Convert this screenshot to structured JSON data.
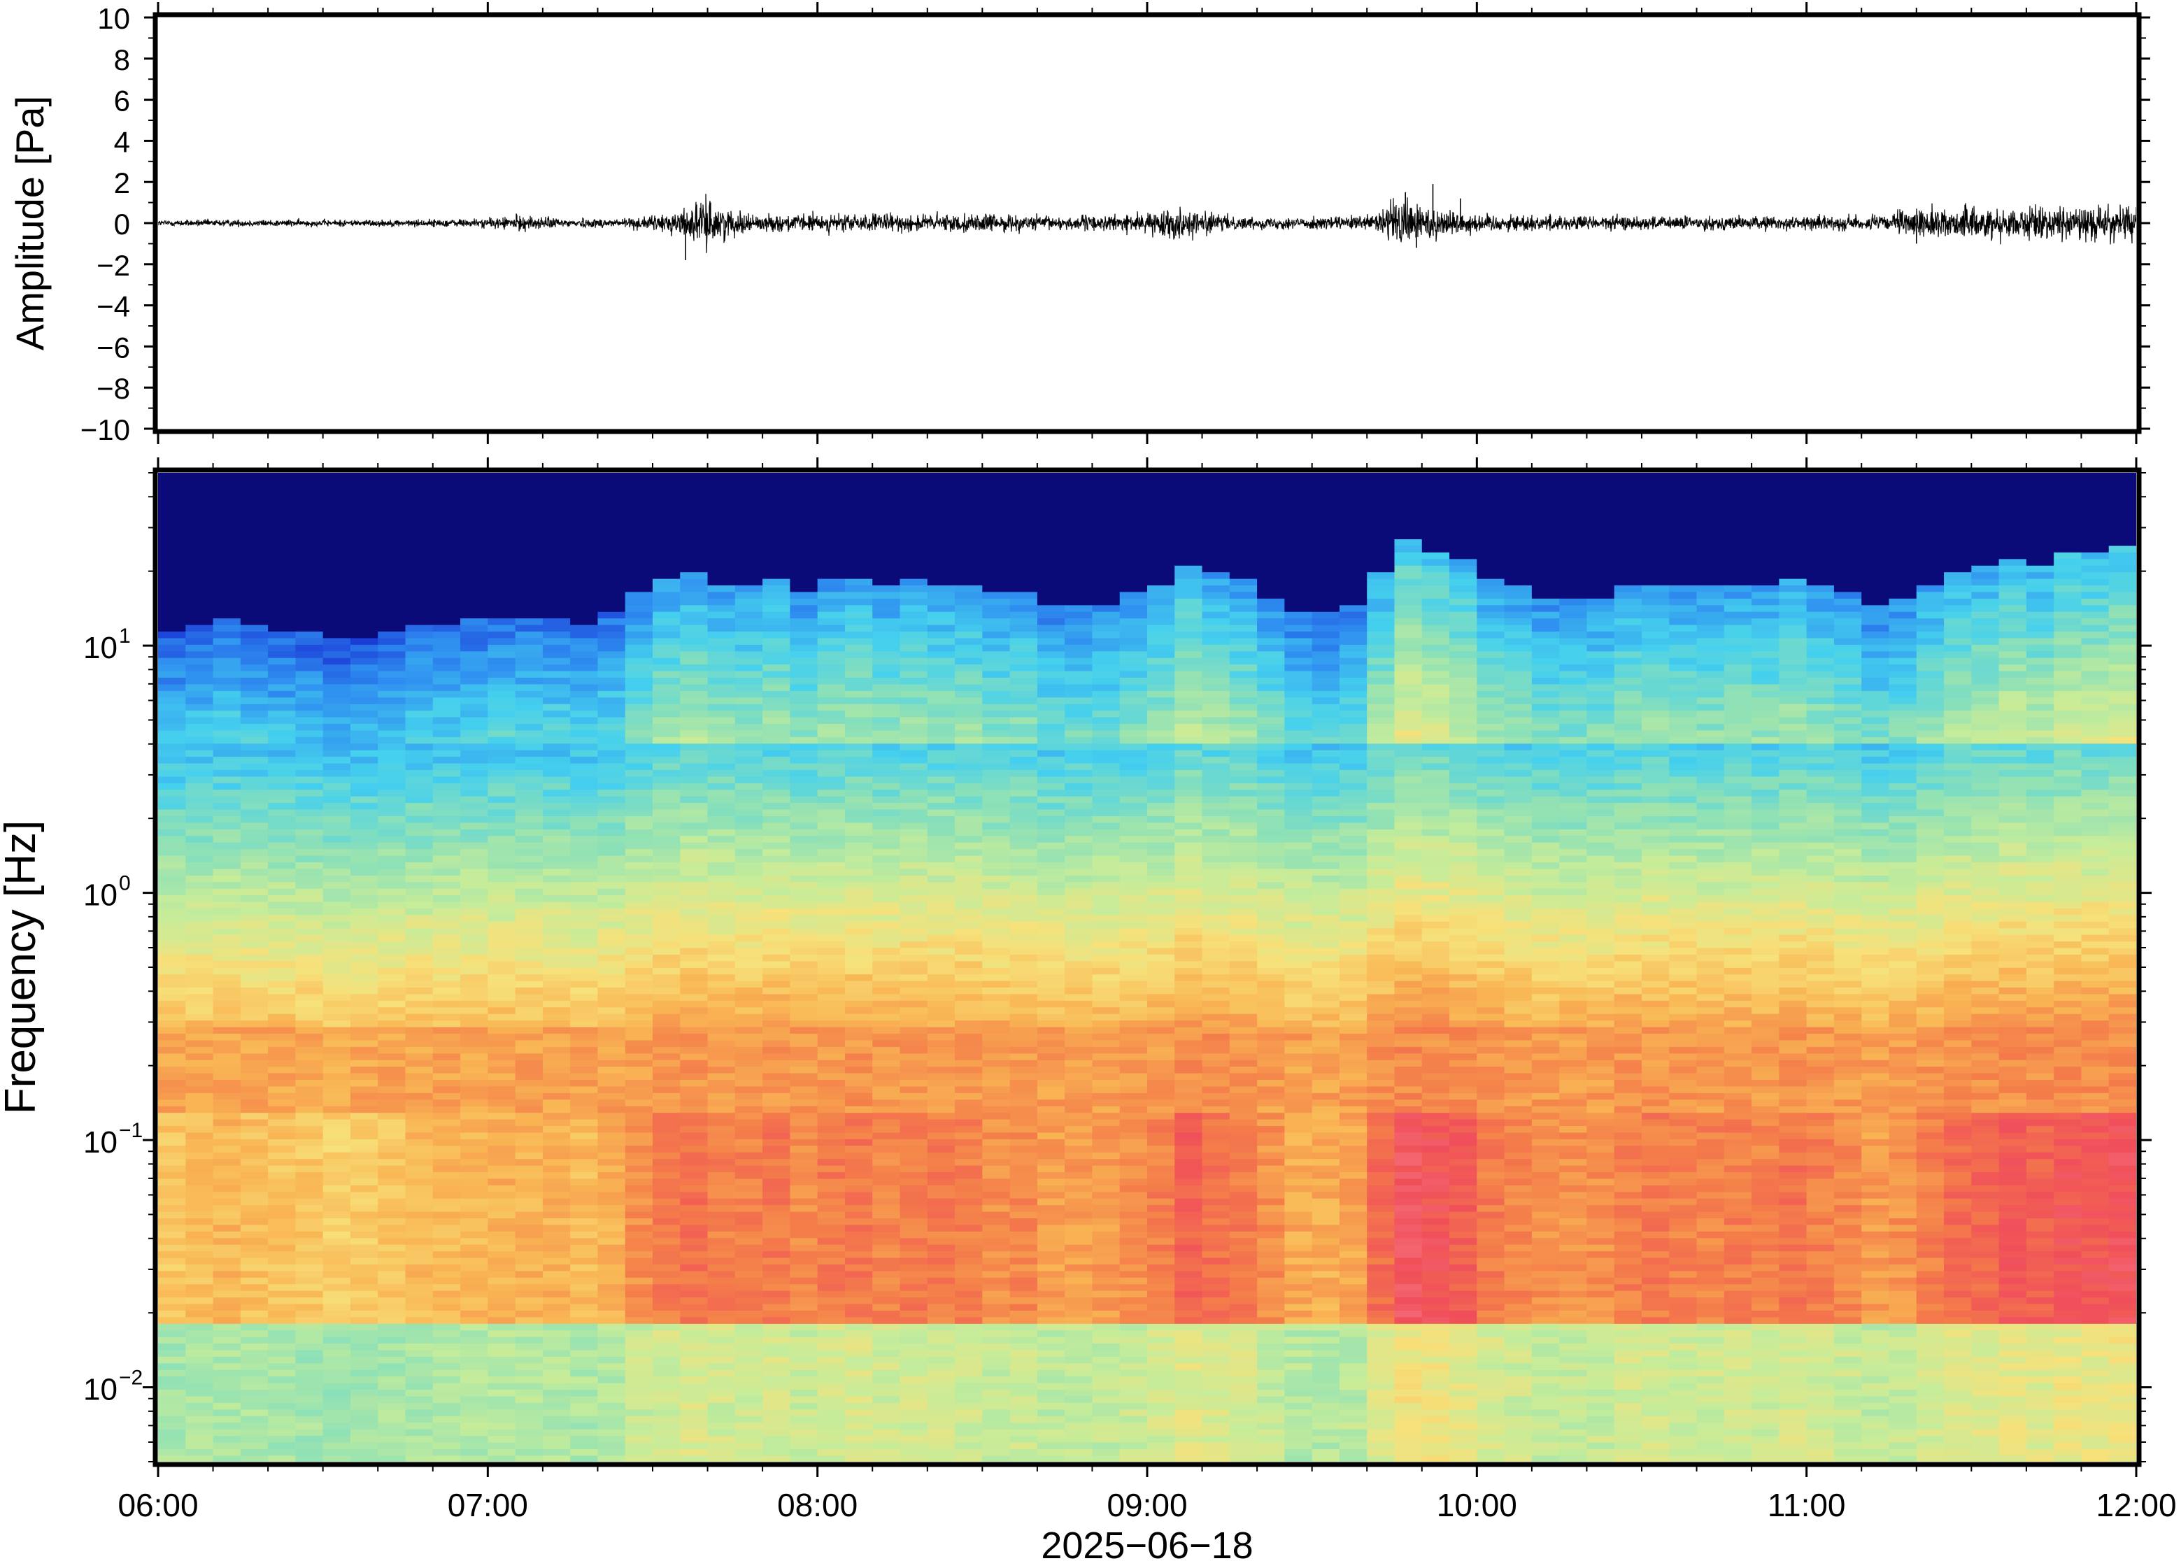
{
  "chart_data": [
    {
      "type": "line",
      "name": "waveform-panel",
      "ylabel": "Amplitude [Pa]",
      "ylim": [
        -10,
        10
      ],
      "yticks": [
        -10,
        -8,
        -6,
        -4,
        -2,
        0,
        2,
        4,
        6,
        8,
        10
      ],
      "ytick_labels": [
        "−10",
        "−8",
        "−6",
        "−4",
        "−2",
        "0",
        "2",
        "4",
        "6",
        "8",
        "10"
      ],
      "xlim": [
        "06:00",
        "12:00"
      ],
      "line_color": "#000000",
      "envelope": {
        "times": [
          "06:00",
          "06:15",
          "06:30",
          "06:45",
          "07:00",
          "07:05",
          "07:15",
          "07:20",
          "07:30",
          "07:35",
          "07:40",
          "07:45",
          "07:50",
          "08:00",
          "08:15",
          "08:30",
          "08:45",
          "08:50",
          "09:00",
          "09:05",
          "09:10",
          "09:15",
          "09:20",
          "09:40",
          "09:45",
          "09:50",
          "09:55",
          "10:00",
          "10:15",
          "10:30",
          "10:45",
          "11:00",
          "11:15",
          "11:18",
          "11:30",
          "11:45",
          "12:00"
        ],
        "amplitude": [
          0.15,
          0.15,
          0.15,
          0.15,
          0.2,
          0.35,
          0.2,
          0.2,
          0.3,
          0.6,
          1.0,
          0.5,
          0.35,
          0.4,
          0.4,
          0.4,
          0.3,
          0.35,
          0.4,
          0.7,
          0.55,
          0.3,
          0.25,
          0.3,
          1.1,
          0.9,
          0.6,
          0.4,
          0.35,
          0.3,
          0.3,
          0.3,
          0.35,
          0.6,
          0.7,
          0.7,
          0.8
        ]
      },
      "spikes": [
        {
          "time": "07:36",
          "value": -1.8
        },
        {
          "time": "07:38",
          "value": 0.9
        },
        {
          "time": "09:47",
          "value": 1.5
        },
        {
          "time": "09:49",
          "value": -1.2
        },
        {
          "time": "09:52",
          "value": 1.9
        },
        {
          "time": "09:57",
          "value": 1.2
        },
        {
          "time": "11:20",
          "value": -1.0
        }
      ]
    },
    {
      "type": "heatmap",
      "name": "spectrogram-panel",
      "ylabel": "Frequency [Hz]",
      "xlabel": "2025−06−18",
      "yscale": "log",
      "ylim": [
        0.005,
        50
      ],
      "yticks": [
        0.01,
        0.1,
        1,
        10
      ],
      "ytick_labels": [
        {
          "base": "10",
          "exp": "−2"
        },
        {
          "base": "10",
          "exp": "−1"
        },
        {
          "base": "10",
          "exp": "0"
        },
        {
          "base": "10",
          "exp": "1"
        }
      ],
      "xlim": [
        "06:00",
        "12:00"
      ],
      "xticks": [
        "06:00",
        "07:00",
        "08:00",
        "09:00",
        "10:00",
        "11:00",
        "12:00"
      ],
      "colormap": "jet",
      "colormap_stops": [
        "#0a0a78",
        "#1b3ed8",
        "#2f8ff0",
        "#45d0ee",
        "#8be0b8",
        "#c6ec9a",
        "#f7e17a",
        "#f9b654",
        "#f47d4a",
        "#f04e5a",
        "#f57883"
      ],
      "activity_timeline": {
        "times": [
          "06:00",
          "06:15",
          "06:30",
          "06:45",
          "07:00",
          "07:10",
          "07:20",
          "07:25",
          "07:35",
          "07:45",
          "08:00",
          "08:15",
          "08:30",
          "08:45",
          "08:50",
          "09:00",
          "09:10",
          "09:20",
          "09:30",
          "09:40",
          "09:45",
          "09:55",
          "10:05",
          "10:15",
          "10:30",
          "10:45",
          "11:00",
          "11:10",
          "11:15",
          "11:20",
          "11:30",
          "11:45",
          "12:00"
        ],
        "level": [
          0.15,
          0.2,
          0.1,
          0.15,
          0.2,
          0.3,
          0.25,
          0.35,
          0.7,
          0.55,
          0.55,
          0.6,
          0.5,
          0.4,
          0.35,
          0.55,
          0.75,
          0.5,
          0.2,
          0.35,
          0.95,
          0.8,
          0.55,
          0.45,
          0.55,
          0.55,
          0.6,
          0.45,
          0.35,
          0.55,
          0.75,
          0.8,
          0.85
        ]
      }
    }
  ]
}
